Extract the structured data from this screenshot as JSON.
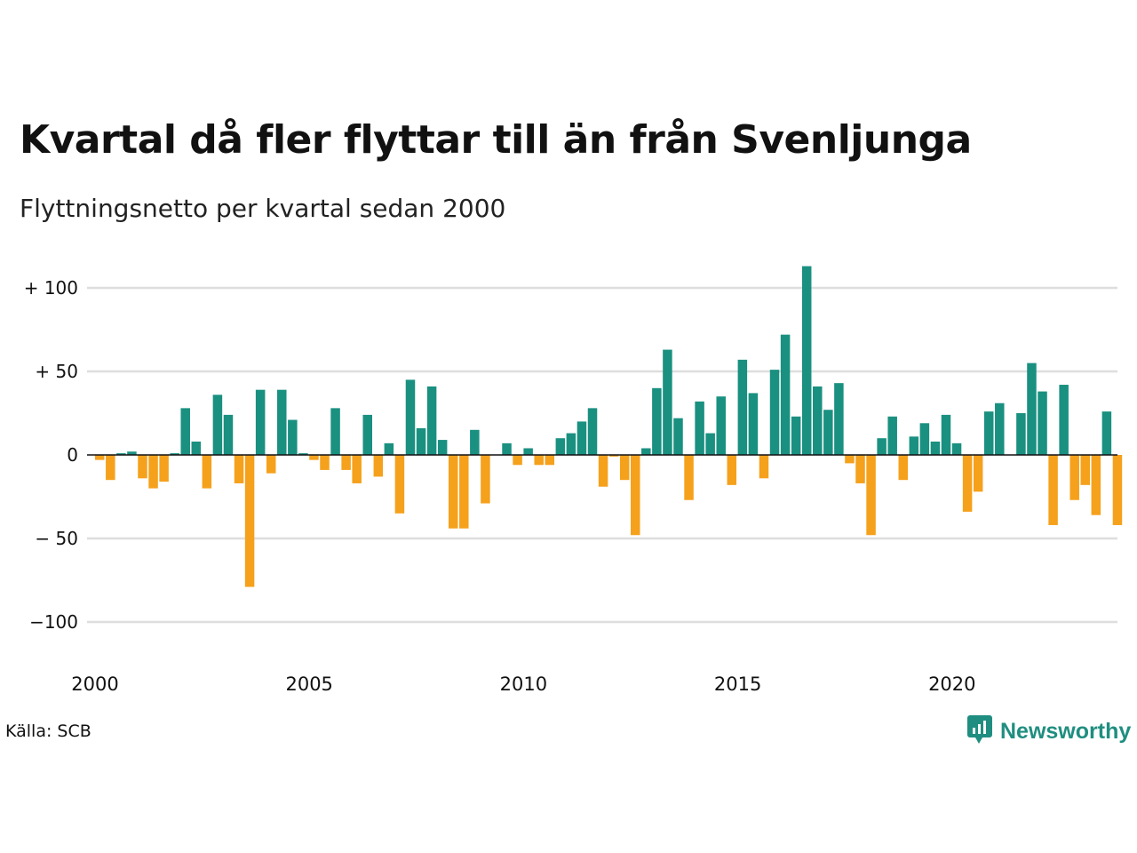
{
  "header": {
    "title": "Kvartal då fler flyttar till än från Svenljunga",
    "subtitle": "Flyttningsnetto per kvartal sedan 2000"
  },
  "footer": {
    "source": "Källa: SCB",
    "brand": "Newsworthy"
  },
  "colors": {
    "positive": "#1a9080",
    "negative": "#f5a11c",
    "grid": "#dedede",
    "zero_line": "#111111",
    "brand": "#1f8e80"
  },
  "icons": {
    "brand_logo": "bar-chart-speech-bubble-icon"
  },
  "chart_data": {
    "type": "bar",
    "title": "Kvartal då fler flyttar till än från Svenljunga",
    "subtitle": "Flyttningsnetto per kvartal sedan 2000",
    "xlabel": "",
    "ylabel": "",
    "x_start_year": 2000,
    "periods_per_year": 4,
    "x_ticks": [
      "2000",
      "2005",
      "2010",
      "2015",
      "2020"
    ],
    "y_ticks": [
      100,
      50,
      0,
      -50,
      -100
    ],
    "y_tick_labels": [
      "+ 100",
      "+  50",
      "0",
      "− 50",
      "−100"
    ],
    "ylim": [
      -120,
      120
    ],
    "grid": true,
    "legend": "none",
    "values": [
      -3,
      -15,
      1,
      2,
      -14,
      -20,
      -16,
      1,
      28,
      8,
      -20,
      36,
      24,
      -17,
      -79,
      39,
      -11,
      39,
      21,
      1,
      -3,
      -9,
      28,
      -9,
      -17,
      24,
      -13,
      7,
      -35,
      45,
      16,
      41,
      9,
      -44,
      -44,
      15,
      -29,
      0,
      7,
      -6,
      4,
      -6,
      -6,
      10,
      13,
      20,
      28,
      -19,
      -1,
      -15,
      -48,
      4,
      40,
      63,
      22,
      -27,
      32,
      13,
      35,
      -18,
      57,
      37,
      -14,
      51,
      72,
      23,
      113,
      41,
      27,
      43,
      -5,
      -17,
      -48,
      10,
      23,
      -15,
      11,
      19,
      8,
      24,
      7,
      -34,
      -22,
      26,
      31,
      0,
      25,
      55,
      38,
      -42,
      42,
      -27,
      -18,
      -36,
      26,
      -42
    ]
  }
}
